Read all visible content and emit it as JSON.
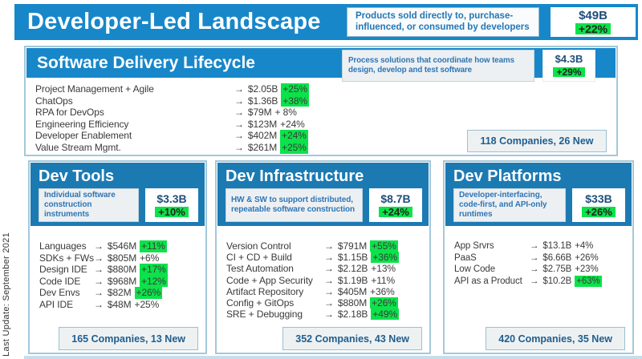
{
  "icons": {
    "arrow": "→"
  },
  "colors": {
    "banner_blue": "#1787c9",
    "column_blue": "#1c7ab3",
    "highlight_green": "#0ce24a",
    "value_navy": "#1f4e79",
    "section_border": "#a3c8da"
  },
  "header": {
    "title": "Developer-Led Landscape",
    "description": "Products sold directly to, purchase-influenced, or consumed by developers",
    "value": "$49B",
    "growth": "+22%"
  },
  "lifecycle": {
    "title": "Software Delivery Lifecycle",
    "description": "Process solutions that coordinate how teams design, develop and test software",
    "value": "$4.3B",
    "growth": "+29%",
    "items": [
      {
        "label": "Project Management + Agile",
        "value": "$2.05B",
        "growth": "+25%",
        "highlight": true
      },
      {
        "label": "ChatOps",
        "value": "$1.36B",
        "growth": "+38%",
        "highlight": true
      },
      {
        "label": "RPA for DevOps",
        "value": "$79M",
        "growth": "+ 8%",
        "highlight": false
      },
      {
        "label": "Engineering Efficiency",
        "value": "$123M",
        "growth": "+24%",
        "highlight": false
      },
      {
        "label": "Developer Enablement",
        "value": "$402M",
        "growth": "+24%",
        "highlight": true
      },
      {
        "label": "Value Stream Mgmt.",
        "value": "$261M",
        "growth": "+25%",
        "highlight": true
      }
    ],
    "companies": "118 Companies, 26 New"
  },
  "columns": [
    {
      "title": "Dev Tools",
      "description": "Individual software construction instruments",
      "value": "$3.3B",
      "growth": "+10%",
      "items": [
        {
          "label": "Languages",
          "value": "$546M",
          "growth": "+11%",
          "highlight": true
        },
        {
          "label": "SDKs + FWs",
          "value": "$805M",
          "growth": "+6%",
          "highlight": false
        },
        {
          "label": "Design IDE",
          "value": "$880M",
          "growth": "+17%",
          "highlight": true
        },
        {
          "label": "Code IDE",
          "value": "$968M",
          "growth": "+12%",
          "highlight": true
        },
        {
          "label": "Dev Envs",
          "value": "$82M",
          "growth": "+26%",
          "highlight": true
        },
        {
          "label": "API IDE",
          "value": "$48M",
          "growth": "+25%",
          "highlight": false
        }
      ],
      "companies": "165 Companies, 13 New"
    },
    {
      "title": "Dev Infrastructure",
      "description": "HW & SW to support distributed, repeatable software construction",
      "value": "$8.7B",
      "growth": "+24%",
      "items": [
        {
          "label": "Version Control",
          "value": "$791M",
          "growth": "+55%",
          "highlight": true
        },
        {
          "label": "CI + CD + Build",
          "value": "$1.15B",
          "growth": "+36%",
          "highlight": true
        },
        {
          "label": "Test Automation",
          "value": "$2.12B",
          "growth": "+13%",
          "highlight": false
        },
        {
          "label": "Code + App Security",
          "value": "$1.19B",
          "growth": "+11%",
          "highlight": false
        },
        {
          "label": "Artifact Repository",
          "value": "$405M",
          "growth": "+36%",
          "highlight": false
        },
        {
          "label": "Config + GitOps",
          "value": "$880M",
          "growth": "+26%",
          "highlight": true
        },
        {
          "label": "SRE + Debugging",
          "value": "$2.18B",
          "growth": "+49%",
          "highlight": true
        }
      ],
      "companies": "352 Companies, 43 New"
    },
    {
      "title": "Dev Platforms",
      "description": "Developer-interfacing, code-first, and API-only runtimes",
      "value": "$33B",
      "growth": "+26%",
      "items": [
        {
          "label": "App Srvrs",
          "value": "$13.1B",
          "growth": "+4%",
          "highlight": false
        },
        {
          "label": "PaaS",
          "value": "$6.66B",
          "growth": "+26%",
          "highlight": false
        },
        {
          "label": "Low Code",
          "value": "$2.75B",
          "growth": "+23%",
          "highlight": false
        },
        {
          "label": "API as a Product",
          "value": "$10.2B",
          "growth": "+63%",
          "highlight": true
        }
      ],
      "companies": "420 Companies, 35 New"
    }
  ],
  "footer": {
    "note": "Last Update: September 2021"
  }
}
